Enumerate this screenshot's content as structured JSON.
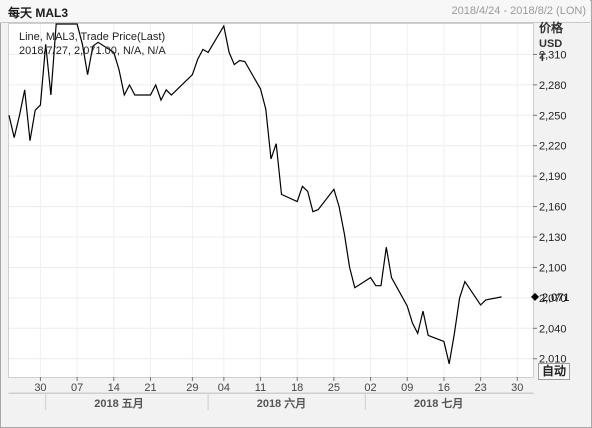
{
  "header": {
    "title": "每天 MAL3",
    "date_range": "2018/4/24 - 2018/8/2 (LON)"
  },
  "info": {
    "line1": "Line, MAL3, Trade Price(Last)",
    "line2": "2018/7/27, 2,071.00, N/A, N/A"
  },
  "axis_header": {
    "line1": "价格",
    "line2": "USD",
    "line3": "T"
  },
  "auto_button": "自动",
  "colors": {
    "line": "#000000",
    "grid": "#e6e6e6",
    "bg": "#ffffff"
  },
  "chart_data": {
    "type": "line",
    "title": "",
    "xlabel": "",
    "ylabel": "",
    "x_range": [
      "2018-04-24",
      "2018-08-02"
    ],
    "ylim": [
      1992,
      2340
    ],
    "y_ticks": [
      {
        "value": 2010,
        "label": "2,010"
      },
      {
        "value": 2040,
        "label": "2,040"
      },
      {
        "value": 2070,
        "label": "2,070"
      },
      {
        "value": 2100,
        "label": "2,100"
      },
      {
        "value": 2130,
        "label": "2,130"
      },
      {
        "value": 2160,
        "label": "2,160"
      },
      {
        "value": 2190,
        "label": "2,190"
      },
      {
        "value": 2220,
        "label": "2,220"
      },
      {
        "value": 2250,
        "label": "2,250"
      },
      {
        "value": 2280,
        "label": "2,280"
      },
      {
        "value": 2310,
        "label": "2,310"
      }
    ],
    "x_ticks": [
      {
        "date": "2018-04-30",
        "label": "30"
      },
      {
        "date": "2018-05-07",
        "label": "07"
      },
      {
        "date": "2018-05-14",
        "label": "14"
      },
      {
        "date": "2018-05-21",
        "label": "21"
      },
      {
        "date": "2018-05-29",
        "label": "29"
      },
      {
        "date": "2018-06-04",
        "label": "04"
      },
      {
        "date": "2018-06-11",
        "label": "11"
      },
      {
        "date": "2018-06-18",
        "label": "18"
      },
      {
        "date": "2018-06-25",
        "label": "25"
      },
      {
        "date": "2018-07-02",
        "label": "02"
      },
      {
        "date": "2018-07-09",
        "label": "09"
      },
      {
        "date": "2018-07-16",
        "label": "16"
      },
      {
        "date": "2018-07-23",
        "label": "23"
      },
      {
        "date": "2018-07-30",
        "label": "30"
      }
    ],
    "months": [
      {
        "label": "2018 五月",
        "center": "2018-05-15",
        "start": "2018-05-01"
      },
      {
        "label": "2018 六月",
        "center": "2018-06-15",
        "start": "2018-06-01"
      },
      {
        "label": "2018 七月",
        "center": "2018-07-15",
        "start": "2018-07-01"
      }
    ],
    "last_marker": {
      "value": 2071,
      "label": "2,071"
    },
    "series": [
      {
        "points": [
          [
            "2018-04-24",
            2250
          ],
          [
            "2018-04-25",
            2228
          ],
          [
            "2018-04-26",
            2250
          ],
          [
            "2018-04-27",
            2275
          ],
          [
            "2018-04-28",
            2225
          ],
          [
            "2018-04-29",
            2255
          ],
          [
            "2018-04-30",
            2260
          ],
          [
            "2018-05-01",
            2320
          ],
          [
            "2018-05-02",
            2270
          ],
          [
            "2018-05-03",
            2340
          ],
          [
            "2018-05-04",
            2340
          ],
          [
            "2018-05-07",
            2340
          ],
          [
            "2018-05-08",
            2320
          ],
          [
            "2018-05-09",
            2290
          ],
          [
            "2018-05-10",
            2318
          ],
          [
            "2018-05-11",
            2322
          ],
          [
            "2018-05-14",
            2312
          ],
          [
            "2018-05-15",
            2295
          ],
          [
            "2018-05-16",
            2270
          ],
          [
            "2018-05-17",
            2280
          ],
          [
            "2018-05-18",
            2270
          ],
          [
            "2018-05-21",
            2270
          ],
          [
            "2018-05-22",
            2280
          ],
          [
            "2018-05-23",
            2265
          ],
          [
            "2018-05-24",
            2275
          ],
          [
            "2018-05-25",
            2270
          ],
          [
            "2018-05-29",
            2290
          ],
          [
            "2018-05-30",
            2305
          ],
          [
            "2018-05-31",
            2315
          ],
          [
            "2018-06-01",
            2312
          ],
          [
            "2018-06-04",
            2338
          ],
          [
            "2018-06-05",
            2312
          ],
          [
            "2018-06-06",
            2300
          ],
          [
            "2018-06-07",
            2304
          ],
          [
            "2018-06-08",
            2303
          ],
          [
            "2018-06-11",
            2276
          ],
          [
            "2018-06-12",
            2256
          ],
          [
            "2018-06-13",
            2207
          ],
          [
            "2018-06-14",
            2222
          ],
          [
            "2018-06-15",
            2172
          ],
          [
            "2018-06-18",
            2165
          ],
          [
            "2018-06-19",
            2180
          ],
          [
            "2018-06-20",
            2175
          ],
          [
            "2018-06-21",
            2155
          ],
          [
            "2018-06-22",
            2157
          ],
          [
            "2018-06-25",
            2177
          ],
          [
            "2018-06-26",
            2160
          ],
          [
            "2018-06-27",
            2133
          ],
          [
            "2018-06-28",
            2100
          ],
          [
            "2018-06-29",
            2080
          ],
          [
            "2018-07-02",
            2090
          ],
          [
            "2018-07-03",
            2082
          ],
          [
            "2018-07-04",
            2082
          ],
          [
            "2018-07-05",
            2120
          ],
          [
            "2018-07-06",
            2090
          ],
          [
            "2018-07-09",
            2062
          ],
          [
            "2018-07-10",
            2045
          ],
          [
            "2018-07-11",
            2035
          ],
          [
            "2018-07-12",
            2057
          ],
          [
            "2018-07-13",
            2033
          ],
          [
            "2018-07-16",
            2027
          ],
          [
            "2018-07-17",
            2005
          ],
          [
            "2018-07-18",
            2035
          ],
          [
            "2018-07-19",
            2070
          ],
          [
            "2018-07-20",
            2086
          ],
          [
            "2018-07-23",
            2063
          ],
          [
            "2018-07-24",
            2068
          ],
          [
            "2018-07-27",
            2071
          ]
        ]
      }
    ]
  }
}
